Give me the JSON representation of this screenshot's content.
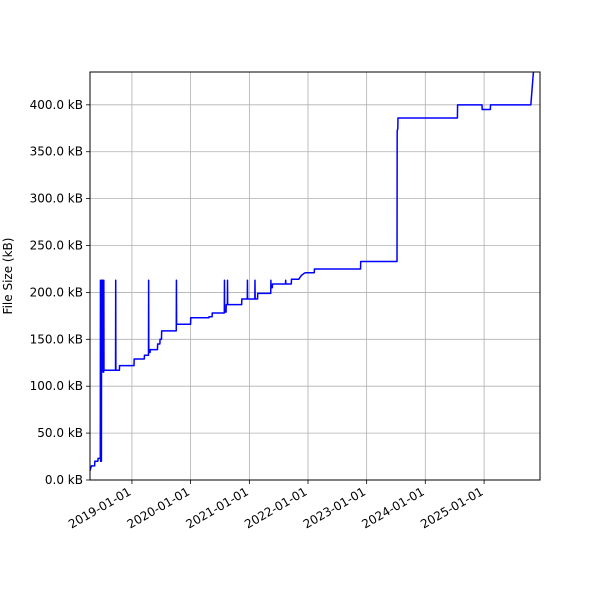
{
  "chart_data": {
    "type": "line",
    "title": "",
    "xlabel": "",
    "ylabel": "File Size (kB)",
    "grid": true,
    "line_color": "#0000ff",
    "xlim": [
      "2018-04-15",
      "2025-12-15"
    ],
    "ylim": [
      0,
      435
    ],
    "x_ticks": [
      "2019-01-01",
      "2020-01-01",
      "2021-01-01",
      "2022-01-01",
      "2023-01-01",
      "2024-01-01",
      "2025-01-01"
    ],
    "y_ticks": [
      0,
      50,
      100,
      150,
      200,
      250,
      300,
      350,
      400
    ],
    "y_tick_labels": [
      "0.0 kB",
      "50.0 kB",
      "100.0 kB",
      "150.0 kB",
      "200.0 kB",
      "250.0 kB",
      "300.0 kB",
      "350.0 kB",
      "400.0 kB"
    ],
    "series": [
      {
        "points": [
          [
            "2018-04-15",
            10
          ],
          [
            "2018-04-24",
            15
          ],
          [
            "2018-05-14",
            15
          ],
          [
            "2018-05-15",
            20
          ],
          [
            "2018-06-03",
            20
          ],
          [
            "2018-06-04",
            23
          ],
          [
            "2018-06-18",
            23
          ],
          [
            "2018-06-19",
            213
          ],
          [
            "2018-06-20",
            20
          ],
          [
            "2018-06-25",
            20
          ],
          [
            "2018-06-26",
            213
          ],
          [
            "2018-06-28",
            213
          ],
          [
            "2018-06-29",
            118
          ],
          [
            "2018-07-02",
            118
          ],
          [
            "2018-07-03",
            213
          ],
          [
            "2018-07-05",
            115
          ],
          [
            "2018-07-09",
            115
          ],
          [
            "2018-07-10",
            213
          ],
          [
            "2018-07-11",
            117
          ],
          [
            "2018-09-21",
            117
          ],
          [
            "2018-09-22",
            213
          ],
          [
            "2018-09-23",
            117
          ],
          [
            "2018-10-15",
            117
          ],
          [
            "2018-10-16",
            122
          ],
          [
            "2019-01-14",
            122
          ],
          [
            "2019-01-15",
            129
          ],
          [
            "2019-03-19",
            129
          ],
          [
            "2019-03-20",
            133
          ],
          [
            "2019-04-14",
            133
          ],
          [
            "2019-04-15",
            213
          ],
          [
            "2019-04-16",
            136
          ],
          [
            "2019-04-24",
            136
          ],
          [
            "2019-04-25",
            139
          ],
          [
            "2019-06-09",
            139
          ],
          [
            "2019-06-10",
            145
          ],
          [
            "2019-06-24",
            145
          ],
          [
            "2019-06-25",
            150
          ],
          [
            "2019-07-04",
            150
          ],
          [
            "2019-07-05",
            159
          ],
          [
            "2019-10-04",
            159
          ],
          [
            "2019-10-05",
            213
          ],
          [
            "2019-10-06",
            166
          ],
          [
            "2020-01-01",
            166
          ],
          [
            "2020-01-02",
            173
          ],
          [
            "2020-04-24",
            173
          ],
          [
            "2020-04-25",
            174
          ],
          [
            "2020-05-14",
            174
          ],
          [
            "2020-05-15",
            178
          ],
          [
            "2020-07-29",
            178
          ],
          [
            "2020-07-30",
            213
          ],
          [
            "2020-07-31",
            179
          ],
          [
            "2020-08-09",
            179
          ],
          [
            "2020-08-10",
            187
          ],
          [
            "2020-08-17",
            187
          ],
          [
            "2020-08-18",
            213
          ],
          [
            "2020-08-19",
            187
          ],
          [
            "2020-11-14",
            187
          ],
          [
            "2020-11-15",
            193
          ],
          [
            "2020-12-19",
            193
          ],
          [
            "2020-12-20",
            213
          ],
          [
            "2020-12-21",
            193
          ],
          [
            "2021-02-04",
            193
          ],
          [
            "2021-02-05",
            213
          ],
          [
            "2021-02-06",
            193
          ],
          [
            "2021-02-21",
            193
          ],
          [
            "2021-02-22",
            199
          ],
          [
            "2021-05-14",
            199
          ],
          [
            "2021-05-15",
            213
          ],
          [
            "2021-05-16",
            205
          ],
          [
            "2021-05-24",
            205
          ],
          [
            "2021-05-25",
            209
          ],
          [
            "2021-08-14",
            209
          ],
          [
            "2021-08-15",
            213
          ],
          [
            "2021-08-16",
            209
          ],
          [
            "2021-09-19",
            209
          ],
          [
            "2021-09-20",
            214
          ],
          [
            "2021-11-04",
            214
          ],
          [
            "2021-11-20",
            218
          ],
          [
            "2021-12-05",
            220
          ],
          [
            "2021-12-15",
            221
          ],
          [
            "2022-02-09",
            221
          ],
          [
            "2022-02-10",
            225
          ],
          [
            "2022-11-24",
            225
          ],
          [
            "2022-11-25",
            233
          ],
          [
            "2023-07-09",
            233
          ],
          [
            "2023-07-10",
            372
          ],
          [
            "2023-07-14",
            375
          ],
          [
            "2023-07-15",
            386
          ],
          [
            "2024-07-19",
            386
          ],
          [
            "2024-07-20",
            400
          ],
          [
            "2024-12-19",
            400
          ],
          [
            "2024-12-20",
            395
          ],
          [
            "2025-02-09",
            395
          ],
          [
            "2025-02-10",
            400
          ],
          [
            "2025-10-19",
            400
          ],
          [
            "2025-11-04",
            435
          ]
        ]
      }
    ]
  }
}
